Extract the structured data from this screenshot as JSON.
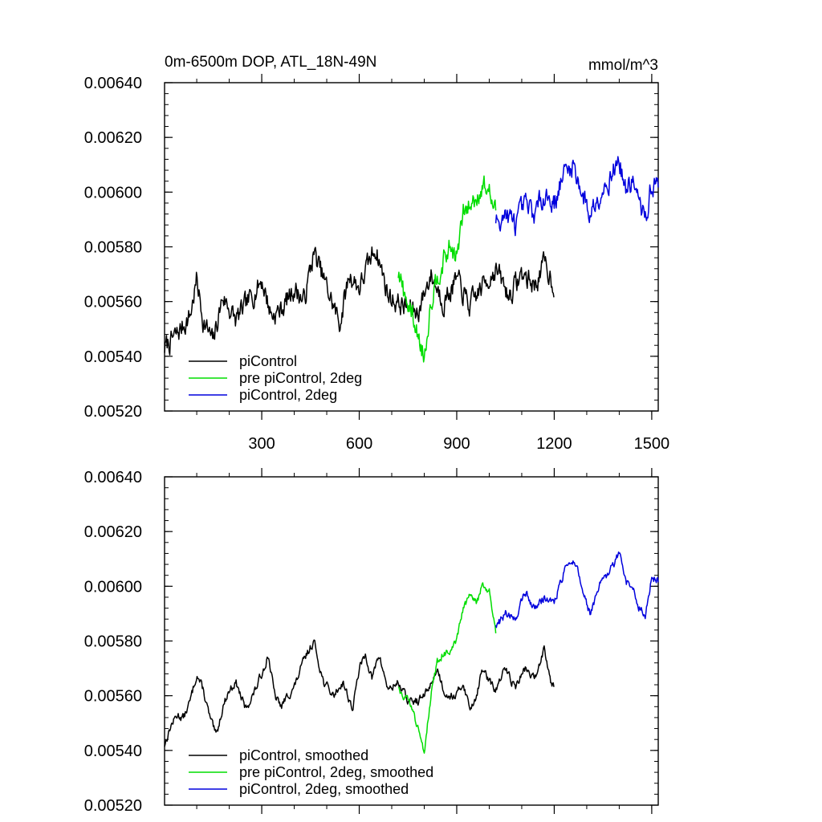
{
  "chart_data": [
    {
      "type": "line",
      "title": "0m-6500m DOP, ATL_18N-49N",
      "units": "mmol/m^3",
      "xlim": [
        1,
        1520
      ],
      "ylim": [
        0.0052,
        0.0064
      ],
      "xticks": [
        300,
        600,
        900,
        1200,
        1500
      ],
      "xtick_labels": [
        "300",
        "600",
        "900",
        "1200",
        "1500"
      ],
      "yticks": [
        0.0052,
        0.0054,
        0.0056,
        0.0058,
        0.006,
        0.0062,
        0.0064
      ],
      "ytick_labels": [
        "0.00520",
        "0.00540",
        "0.00560",
        "0.00580",
        "0.00600",
        "0.00620",
        "0.00640"
      ],
      "legend_position": "bottom-left",
      "series": [
        {
          "name": "piControl",
          "color": "#000000",
          "x": [
            1,
            40,
            80,
            100,
            120,
            150,
            180,
            220,
            260,
            300,
            330,
            360,
            400,
            430,
            460,
            500,
            540,
            570,
            600,
            650,
            690,
            740,
            780,
            820,
            860,
            900,
            940,
            980,
            1020,
            1060,
            1100,
            1140,
            1170,
            1200
          ],
          "y": [
            0.00543,
            0.00548,
            0.00555,
            0.00568,
            0.00553,
            0.00545,
            0.00562,
            0.00553,
            0.0056,
            0.00568,
            0.00555,
            0.00557,
            0.00565,
            0.0056,
            0.00578,
            0.00565,
            0.00552,
            0.0057,
            0.00565,
            0.0058,
            0.00562,
            0.00558,
            0.00556,
            0.0057,
            0.0056,
            0.00568,
            0.00558,
            0.00566,
            0.00572,
            0.00562,
            0.0057,
            0.00566,
            0.00574,
            0.00566
          ]
        },
        {
          "name": "pre piControl, 2deg",
          "color": "#00dd00",
          "x": [
            720,
            740,
            760,
            780,
            800,
            820,
            840,
            860,
            880,
            900,
            920,
            940,
            960,
            980,
            1000,
            1020
          ],
          "y": [
            0.0057,
            0.00562,
            0.00556,
            0.00548,
            0.0054,
            0.0056,
            0.0057,
            0.00575,
            0.0058,
            0.00576,
            0.00592,
            0.00595,
            0.00598,
            0.00603,
            0.006,
            0.00592
          ]
        },
        {
          "name": "piControl, 2deg",
          "color": "#0000dd",
          "x": [
            1020,
            1050,
            1080,
            1110,
            1140,
            1170,
            1200,
            1230,
            1260,
            1290,
            1310,
            1340,
            1370,
            1400,
            1420,
            1440,
            1460,
            1480,
            1500,
            1520
          ],
          "y": [
            0.0059,
            0.00592,
            0.00588,
            0.00595,
            0.00592,
            0.006,
            0.00596,
            0.00607,
            0.0061,
            0.00598,
            0.00592,
            0.006,
            0.00605,
            0.00612,
            0.006,
            0.00605,
            0.00596,
            0.0059,
            0.00603,
            0.00602
          ]
        }
      ]
    },
    {
      "type": "line",
      "xlim": [
        1,
        1520
      ],
      "ylim": [
        0.0052,
        0.0064
      ],
      "xticks": [
        300,
        600,
        900,
        1200,
        1500
      ],
      "yticks": [
        0.0052,
        0.0054,
        0.0056,
        0.0058,
        0.006,
        0.0062,
        0.0064
      ],
      "ytick_labels": [
        "0.00520",
        "0.00540",
        "0.00560",
        "0.00580",
        "0.00600",
        "0.00620",
        "0.00640"
      ],
      "legend_position": "bottom-left",
      "series": [
        {
          "name": "piControl, smoothed",
          "color": "#000000",
          "x": [
            1,
            20,
            40,
            60,
            80,
            100,
            120,
            140,
            160,
            180,
            200,
            220,
            250,
            280,
            300,
            320,
            340,
            360,
            380,
            400,
            430,
            460,
            490,
            520,
            550,
            580,
            600,
            620,
            640,
            660,
            690,
            720,
            750,
            780,
            800,
            820,
            840,
            860,
            880,
            900,
            920,
            940,
            960,
            980,
            1000,
            1020,
            1050,
            1080,
            1110,
            1140,
            1170,
            1190,
            1200
          ],
          "y": [
            0.00542,
            0.00549,
            0.00553,
            0.00552,
            0.00558,
            0.00568,
            0.00562,
            0.00552,
            0.00545,
            0.00556,
            0.00562,
            0.00565,
            0.00555,
            0.00562,
            0.00568,
            0.00575,
            0.0056,
            0.00556,
            0.0056,
            0.00563,
            0.00573,
            0.0058,
            0.00565,
            0.0056,
            0.00565,
            0.00555,
            0.0057,
            0.00575,
            0.00566,
            0.00575,
            0.00562,
            0.00565,
            0.00558,
            0.00558,
            0.0056,
            0.00564,
            0.0057,
            0.00562,
            0.0056,
            0.0056,
            0.00565,
            0.00555,
            0.0056,
            0.0057,
            0.00565,
            0.00562,
            0.0057,
            0.00563,
            0.0057,
            0.00566,
            0.00578,
            0.00565,
            0.00564
          ]
        },
        {
          "name": "pre piControl, 2deg, smoothed",
          "color": "#00dd00",
          "x": [
            720,
            740,
            760,
            780,
            800,
            820,
            840,
            860,
            880,
            900,
            920,
            940,
            960,
            980,
            1000,
            1020
          ],
          "y": [
            0.00563,
            0.0056,
            0.00556,
            0.00548,
            0.0054,
            0.0056,
            0.00572,
            0.00576,
            0.00575,
            0.0058,
            0.00592,
            0.00596,
            0.00594,
            0.006,
            0.00598,
            0.00582
          ]
        },
        {
          "name": "piControl, 2deg, smoothed",
          "color": "#0000dd",
          "x": [
            1020,
            1050,
            1080,
            1110,
            1140,
            1170,
            1200,
            1230,
            1260,
            1290,
            1310,
            1340,
            1370,
            1400,
            1420,
            1440,
            1460,
            1480,
            1500,
            1520
          ],
          "y": [
            0.00585,
            0.0059,
            0.00588,
            0.00598,
            0.00592,
            0.00596,
            0.00594,
            0.00605,
            0.0061,
            0.00598,
            0.0059,
            0.006,
            0.00605,
            0.00612,
            0.00601,
            0.006,
            0.00592,
            0.0059,
            0.00603,
            0.00602
          ]
        }
      ]
    }
  ]
}
